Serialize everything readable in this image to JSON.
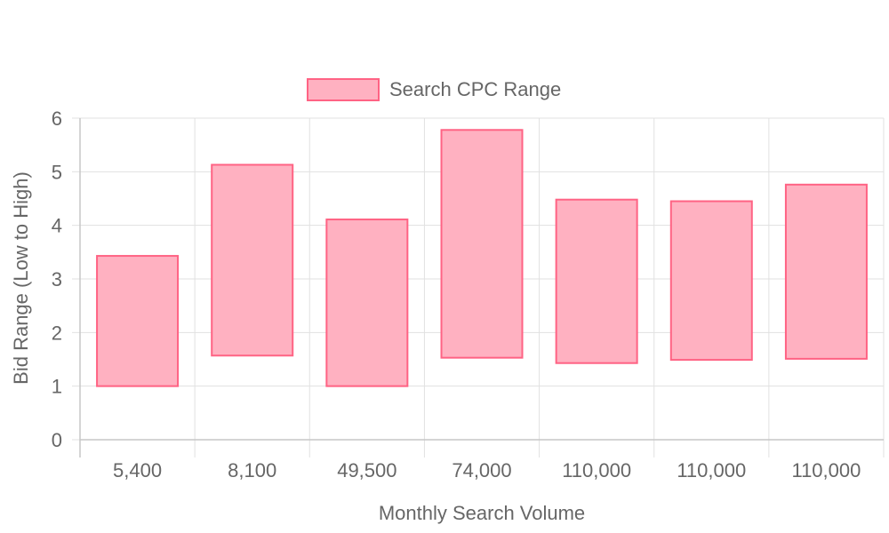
{
  "chart_data": {
    "type": "bar",
    "subtype": "floating-range",
    "legend": {
      "label": "Search CPC Range",
      "position": "top-center"
    },
    "xlabel": "Monthly Search Volume",
    "ylabel": "Bid Range (Low to High)",
    "categories": [
      "5,400",
      "8,100",
      "49,500",
      "74,000",
      "110,000",
      "110,000",
      "110,000"
    ],
    "series": [
      {
        "name": "Search CPC Range",
        "ranges": [
          [
            1.0,
            3.43
          ],
          [
            1.57,
            5.13
          ],
          [
            1.0,
            4.11
          ],
          [
            1.53,
            5.78
          ],
          [
            1.43,
            4.48
          ],
          [
            1.49,
            4.45
          ],
          [
            1.51,
            4.76
          ]
        ]
      }
    ],
    "ylim": [
      0,
      6
    ],
    "yticks": [
      "0",
      "1",
      "2",
      "3",
      "4",
      "5",
      "6"
    ],
    "grid": true,
    "colors": {
      "bar_fill": "#ffb1c1",
      "bar_border": "#ff6384",
      "grid": "#e1e1e1",
      "text": "#666666"
    }
  }
}
